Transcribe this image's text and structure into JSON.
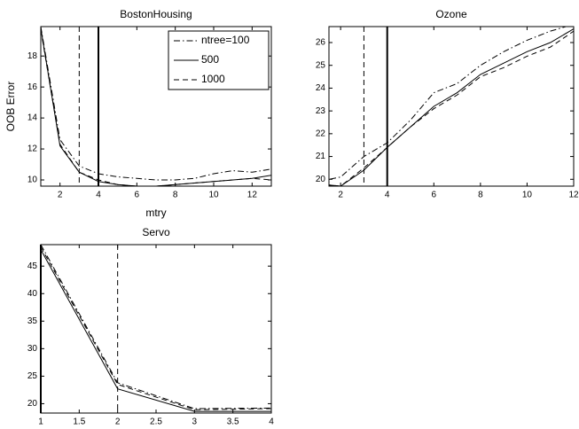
{
  "chart_data": [
    {
      "type": "line",
      "title": "BostonHousing",
      "xlabel": "mtry",
      "ylabel": "OOB Error",
      "x": [
        1,
        2,
        3,
        4,
        5,
        6,
        7,
        8,
        9,
        10,
        11,
        12,
        13
      ],
      "series": [
        {
          "name": "ntree=100",
          "color": "#000000",
          "style": "dashdot",
          "values": [
            19.9,
            12.6,
            10.9,
            10.4,
            10.2,
            10.1,
            10.0,
            10.0,
            10.1,
            10.4,
            10.6,
            10.5,
            10.7
          ]
        },
        {
          "name": "500",
          "color": "#000000",
          "style": "solid",
          "values": [
            19.8,
            12.2,
            10.5,
            9.9,
            9.7,
            9.6,
            9.6,
            9.7,
            9.8,
            9.9,
            10.0,
            10.1,
            10.3
          ]
        },
        {
          "name": "1000",
          "color": "#000000",
          "style": "dashed",
          "values": [
            19.7,
            12.3,
            10.5,
            10.0,
            9.7,
            9.6,
            9.6,
            9.7,
            9.8,
            9.9,
            10.0,
            10.1,
            10.0
          ]
        }
      ],
      "xlim": [
        1,
        13
      ],
      "ylim": [
        9.6,
        19.9
      ],
      "xticks": [
        2,
        4,
        6,
        8,
        10,
        12
      ],
      "yticks": [
        10,
        12,
        14,
        16,
        18
      ],
      "vlines": [
        {
          "x": 3,
          "style": "dashed"
        },
        {
          "x": 4,
          "style": "solid"
        }
      ],
      "legend": "upper right"
    },
    {
      "type": "line",
      "title": "Ozone",
      "x": [
        1,
        2,
        3,
        4,
        5,
        6,
        7,
        8,
        9,
        10,
        11,
        12
      ],
      "series": [
        {
          "color": "#000000",
          "style": "dashdot",
          "values": [
            19.9,
            20.1,
            21.0,
            21.6,
            22.6,
            23.8,
            24.2,
            25.0,
            25.6,
            26.1,
            26.5,
            26.8
          ]
        },
        {
          "color": "#000000",
          "style": "solid",
          "values": [
            19.8,
            19.7,
            20.4,
            21.4,
            22.3,
            23.2,
            23.8,
            24.6,
            25.1,
            25.6,
            26.0,
            26.6
          ]
        },
        {
          "color": "#000000",
          "style": "dashed",
          "values": [
            19.8,
            19.7,
            20.5,
            21.4,
            22.3,
            23.1,
            23.7,
            24.5,
            24.9,
            25.4,
            25.8,
            26.5
          ]
        }
      ],
      "xlim": [
        1.5,
        12
      ],
      "ylim": [
        19.7,
        26.7
      ],
      "xticks": [
        2,
        4,
        6,
        8,
        10,
        12
      ],
      "yticks": [
        20,
        21,
        22,
        23,
        24,
        25,
        26
      ],
      "vlines": [
        {
          "x": 3,
          "style": "dashed"
        },
        {
          "x": 4,
          "style": "solid"
        }
      ]
    },
    {
      "type": "line",
      "title": "Servo",
      "x": [
        1,
        2,
        3,
        4
      ],
      "series": [
        {
          "color": "#000000",
          "style": "dashdot",
          "values": [
            48.9,
            23.8,
            19.1,
            19.2
          ]
        },
        {
          "color": "#000000",
          "style": "solid",
          "values": [
            48.0,
            22.7,
            18.6,
            18.6
          ]
        },
        {
          "color": "#000000",
          "style": "dashed",
          "values": [
            48.5,
            23.5,
            18.9,
            19.1
          ]
        }
      ],
      "xlim": [
        1,
        4
      ],
      "ylim": [
        18.3,
        48.9
      ],
      "xticks": [
        1,
        1.5,
        2,
        2.5,
        3,
        3.5,
        4
      ],
      "yticks": [
        20,
        25,
        30,
        35,
        40,
        45
      ],
      "vlines": [
        {
          "x": 2,
          "style": "dashed"
        },
        {
          "x": 1,
          "style": "solid"
        }
      ]
    }
  ]
}
